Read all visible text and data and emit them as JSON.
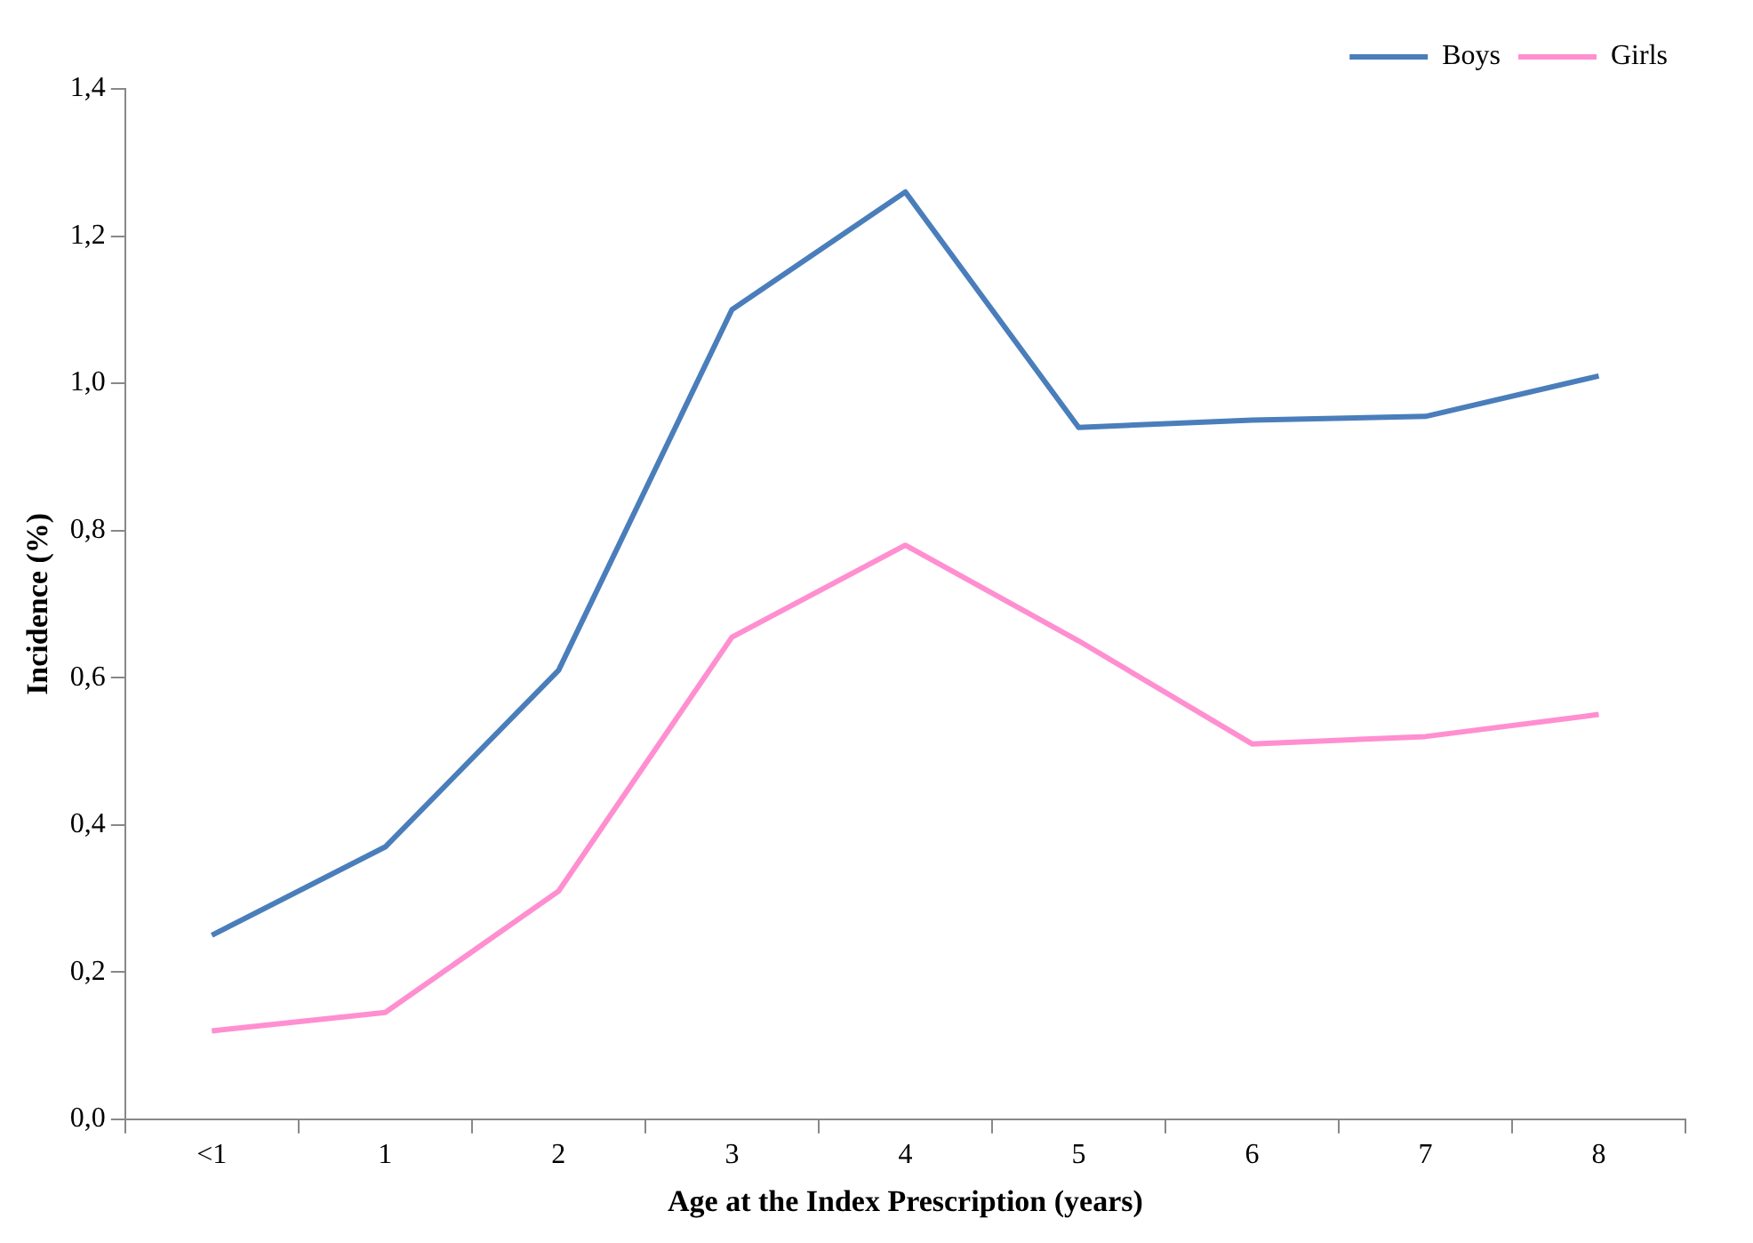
{
  "chart_data": {
    "type": "line",
    "xlabel": "Age at the Index Prescription (years)",
    "ylabel": "Incidence (%)",
    "categories": [
      "<1",
      "1",
      "2",
      "3",
      "4",
      "5",
      "6",
      "7",
      "8"
    ],
    "series": [
      {
        "name": "Boys",
        "color": "#4a7ebb",
        "values": [
          0.25,
          0.37,
          0.61,
          1.1,
          1.26,
          0.94,
          0.95,
          0.955,
          1.01
        ]
      },
      {
        "name": "Girls",
        "color": "#ff8fd0",
        "values": [
          0.12,
          0.145,
          0.31,
          0.655,
          0.78,
          0.65,
          0.51,
          0.52,
          0.55
        ]
      }
    ],
    "ylim": [
      0,
      1.4
    ],
    "yticks": [
      {
        "value": 0,
        "label": "0,0"
      },
      {
        "value": 0.2,
        "label": "0,2"
      },
      {
        "value": 0.4,
        "label": "0,4"
      },
      {
        "value": 0.6,
        "label": "0,6"
      },
      {
        "value": 0.8,
        "label": "0,8"
      },
      {
        "value": 1.0,
        "label": "1,0"
      },
      {
        "value": 1.2,
        "label": "1,2"
      },
      {
        "value": 1.4,
        "label": "1,4"
      }
    ],
    "legend": "top right",
    "marker": "none",
    "line_style": "solid"
  }
}
